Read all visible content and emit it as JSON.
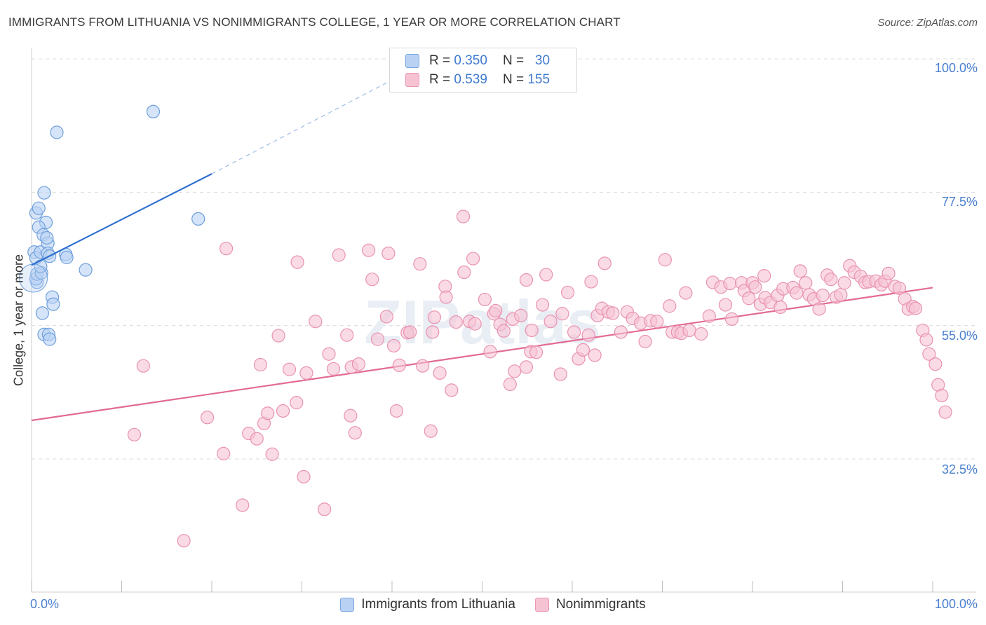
{
  "title": "IMMIGRANTS FROM LITHUANIA VS NONIMMIGRANTS COLLEGE, 1 YEAR OR MORE CORRELATION CHART",
  "source": "Source: ZipAtlas.com",
  "watermark": "ZIPatlas",
  "legend": {
    "rows": [
      {
        "r_label": "R =",
        "r_value": "0.350",
        "n_label": "N =",
        "n_value": "30"
      },
      {
        "r_label": "R =",
        "r_value": "0.539",
        "n_label": "N =",
        "n_value": "155"
      }
    ]
  },
  "bottom_legend": [
    "Immigrants from Lithuania",
    "Nonimmigrants"
  ],
  "colors": {
    "blue_fill": "#b9d2f3",
    "blue_stroke": "#6e9fdc",
    "blue_line": "#2e6fd0",
    "pink_fill": "#f6c3d3",
    "pink_stroke": "#e992b1",
    "pink_line": "#e26a95",
    "grid": "#dcdcdc",
    "axis_text": "#4a7fcf"
  },
  "chart_data": {
    "type": "scatter",
    "title": "IMMIGRANTS FROM LITHUANIA VS NONIMMIGRANTS COLLEGE, 1 YEAR OR MORE CORRELATION CHART",
    "xlabel": "",
    "ylabel": "College, 1 year or more",
    "xlim": [
      0,
      100
    ],
    "ylim": [
      10,
      102
    ],
    "x_tick_labels": [
      "0.0%",
      "100.0%"
    ],
    "y_tick_labels": [
      "100.0%",
      "77.5%",
      "55.0%",
      "32.5%"
    ],
    "y_tick_values": [
      100,
      77.5,
      55,
      32.5
    ],
    "series": [
      {
        "name": "Immigrants from Lithuania",
        "color": "blue",
        "points": [
          [
            0.3,
            67.4
          ],
          [
            0.5,
            66.4
          ],
          [
            0.6,
            62.3
          ],
          [
            0.5,
            62.9
          ],
          [
            0.6,
            63.7
          ],
          [
            1.0,
            67.4
          ],
          [
            1.1,
            63.9
          ],
          [
            1.0,
            65.0
          ],
          [
            0.5,
            74.0
          ],
          [
            0.8,
            74.8
          ],
          [
            1.4,
            77.4
          ],
          [
            1.6,
            72.4
          ],
          [
            0.8,
            71.6
          ],
          [
            1.3,
            70.3
          ],
          [
            1.8,
            68.9
          ],
          [
            1.7,
            69.8
          ],
          [
            1.8,
            67.2
          ],
          [
            2.0,
            66.7
          ],
          [
            3.8,
            67.0
          ],
          [
            3.9,
            66.5
          ],
          [
            1.2,
            57.1
          ],
          [
            2.3,
            59.8
          ],
          [
            2.4,
            58.6
          ],
          [
            1.4,
            53.5
          ],
          [
            1.9,
            53.5
          ],
          [
            2.0,
            52.7
          ],
          [
            6.0,
            64.4
          ],
          [
            13.5,
            91.1
          ],
          [
            2.8,
            87.6
          ],
          [
            18.5,
            73.0
          ]
        ],
        "trend": {
          "x": [
            0,
            20
          ],
          "y": [
            65.2,
            80.6
          ],
          "dashed_to": {
            "x": 42,
            "y": 98.0
          }
        }
      },
      {
        "name": "Nonimmigrants",
        "color": "pink",
        "points": [
          [
            12.4,
            48.2
          ],
          [
            11.4,
            36.6
          ],
          [
            16.9,
            18.7
          ],
          [
            19.5,
            39.5
          ],
          [
            21.3,
            33.4
          ],
          [
            21.6,
            68.0
          ],
          [
            23.4,
            24.7
          ],
          [
            24.1,
            36.8
          ],
          [
            25.0,
            35.9
          ],
          [
            25.4,
            48.4
          ],
          [
            25.8,
            38.5
          ],
          [
            26.2,
            40.2
          ],
          [
            26.7,
            33.3
          ],
          [
            27.4,
            53.3
          ],
          [
            27.9,
            40.6
          ],
          [
            28.6,
            47.6
          ],
          [
            29.4,
            42.0
          ],
          [
            29.5,
            65.7
          ],
          [
            30.2,
            29.5
          ],
          [
            30.5,
            47.0
          ],
          [
            31.5,
            55.7
          ],
          [
            32.5,
            24.0
          ],
          [
            33.0,
            50.2
          ],
          [
            33.5,
            47.7
          ],
          [
            34.1,
            66.9
          ],
          [
            35.0,
            53.4
          ],
          [
            35.4,
            39.8
          ],
          [
            35.5,
            48.0
          ],
          [
            35.9,
            36.9
          ],
          [
            36.3,
            48.5
          ],
          [
            37.4,
            67.7
          ],
          [
            37.8,
            62.8
          ],
          [
            38.4,
            52.7
          ],
          [
            39.4,
            56.5
          ],
          [
            39.6,
            67.2
          ],
          [
            40.2,
            51.6
          ],
          [
            40.5,
            40.6
          ],
          [
            40.8,
            48.3
          ],
          [
            41.7,
            53.8
          ],
          [
            42.0,
            53.9
          ],
          [
            43.1,
            65.4
          ],
          [
            43.4,
            48.2
          ],
          [
            44.3,
            37.2
          ],
          [
            44.5,
            53.9
          ],
          [
            44.7,
            56.4
          ],
          [
            45.3,
            47.0
          ],
          [
            45.9,
            61.6
          ],
          [
            46.0,
            59.8
          ],
          [
            46.6,
            44.1
          ],
          [
            47.1,
            55.6
          ],
          [
            47.9,
            73.4
          ],
          [
            48.0,
            64.0
          ],
          [
            48.6,
            55.7
          ],
          [
            49.0,
            66.3
          ],
          [
            49.2,
            55.3
          ],
          [
            50.3,
            59.4
          ],
          [
            50.9,
            50.6
          ],
          [
            51.3,
            57.0
          ],
          [
            51.5,
            57.5
          ],
          [
            52.0,
            55.2
          ],
          [
            52.4,
            54.1
          ],
          [
            53.1,
            45.1
          ],
          [
            53.4,
            56.1
          ],
          [
            53.6,
            47.3
          ],
          [
            54.3,
            56.7
          ],
          [
            54.9,
            48.0
          ],
          [
            55.4,
            50.6
          ],
          [
            55.5,
            54.2
          ],
          [
            56.0,
            50.5
          ],
          [
            56.7,
            58.5
          ],
          [
            57.6,
            55.7
          ],
          [
            58.7,
            46.8
          ],
          [
            58.9,
            57.0
          ],
          [
            59.5,
            60.6
          ],
          [
            60.2,
            53.9
          ],
          [
            60.7,
            49.4
          ],
          [
            61.2,
            50.9
          ],
          [
            61.8,
            53.4
          ],
          [
            62.5,
            50.0
          ],
          [
            62.8,
            56.7
          ],
          [
            63.3,
            57.9
          ],
          [
            64.0,
            57.3
          ],
          [
            64.5,
            57.1
          ],
          [
            65.4,
            53.9
          ],
          [
            66.1,
            57.3
          ],
          [
            66.7,
            56.2
          ],
          [
            67.6,
            55.4
          ],
          [
            68.1,
            52.3
          ],
          [
            68.7,
            55.8
          ],
          [
            69.4,
            55.7
          ],
          [
            70.8,
            58.3
          ],
          [
            71.1,
            53.9
          ],
          [
            71.7,
            53.9
          ],
          [
            72.1,
            53.7
          ],
          [
            72.6,
            60.5
          ],
          [
            73.0,
            54.2
          ],
          [
            74.3,
            53.6
          ],
          [
            75.2,
            56.6
          ],
          [
            75.6,
            62.3
          ],
          [
            76.5,
            61.5
          ],
          [
            77.0,
            58.5
          ],
          [
            77.5,
            62.1
          ],
          [
            77.7,
            56.1
          ],
          [
            78.8,
            62.2
          ],
          [
            79.1,
            60.9
          ],
          [
            79.6,
            59.6
          ],
          [
            80.0,
            62.2
          ],
          [
            80.3,
            61.5
          ],
          [
            80.9,
            58.6
          ],
          [
            81.3,
            63.4
          ],
          [
            81.4,
            59.7
          ],
          [
            82.0,
            58.9
          ],
          [
            82.8,
            60.1
          ],
          [
            83.1,
            58.1
          ],
          [
            83.4,
            61.2
          ],
          [
            84.5,
            61.4
          ],
          [
            84.9,
            60.5
          ],
          [
            85.3,
            64.2
          ],
          [
            85.9,
            62.2
          ],
          [
            86.3,
            60.2
          ],
          [
            86.8,
            59.5
          ],
          [
            87.4,
            57.8
          ],
          [
            87.8,
            60.1
          ],
          [
            88.3,
            63.5
          ],
          [
            88.7,
            62.8
          ],
          [
            89.3,
            59.8
          ],
          [
            89.8,
            60.2
          ],
          [
            90.2,
            62.2
          ],
          [
            90.8,
            65.1
          ],
          [
            91.3,
            64.0
          ],
          [
            92.0,
            63.3
          ],
          [
            92.5,
            62.3
          ],
          [
            92.9,
            62.4
          ],
          [
            93.7,
            62.5
          ],
          [
            94.3,
            61.9
          ],
          [
            94.7,
            62.5
          ],
          [
            95.1,
            63.8
          ],
          [
            95.8,
            61.6
          ],
          [
            96.3,
            61.3
          ],
          [
            96.9,
            59.5
          ],
          [
            97.3,
            57.8
          ],
          [
            97.8,
            58.2
          ],
          [
            98.1,
            57.9
          ],
          [
            98.9,
            54.2
          ],
          [
            99.3,
            52.6
          ],
          [
            99.6,
            50.2
          ],
          [
            100.3,
            48.5
          ],
          [
            100.6,
            45.0
          ],
          [
            101.0,
            43.2
          ],
          [
            101.4,
            40.4
          ],
          [
            63.6,
            65.5
          ],
          [
            70.3,
            66.1
          ],
          [
            54.9,
            62.7
          ],
          [
            57.1,
            63.6
          ],
          [
            62.1,
            62.4
          ]
        ],
        "trend": {
          "x": [
            0,
            100
          ],
          "y": [
            39.0,
            61.4
          ]
        }
      }
    ]
  }
}
